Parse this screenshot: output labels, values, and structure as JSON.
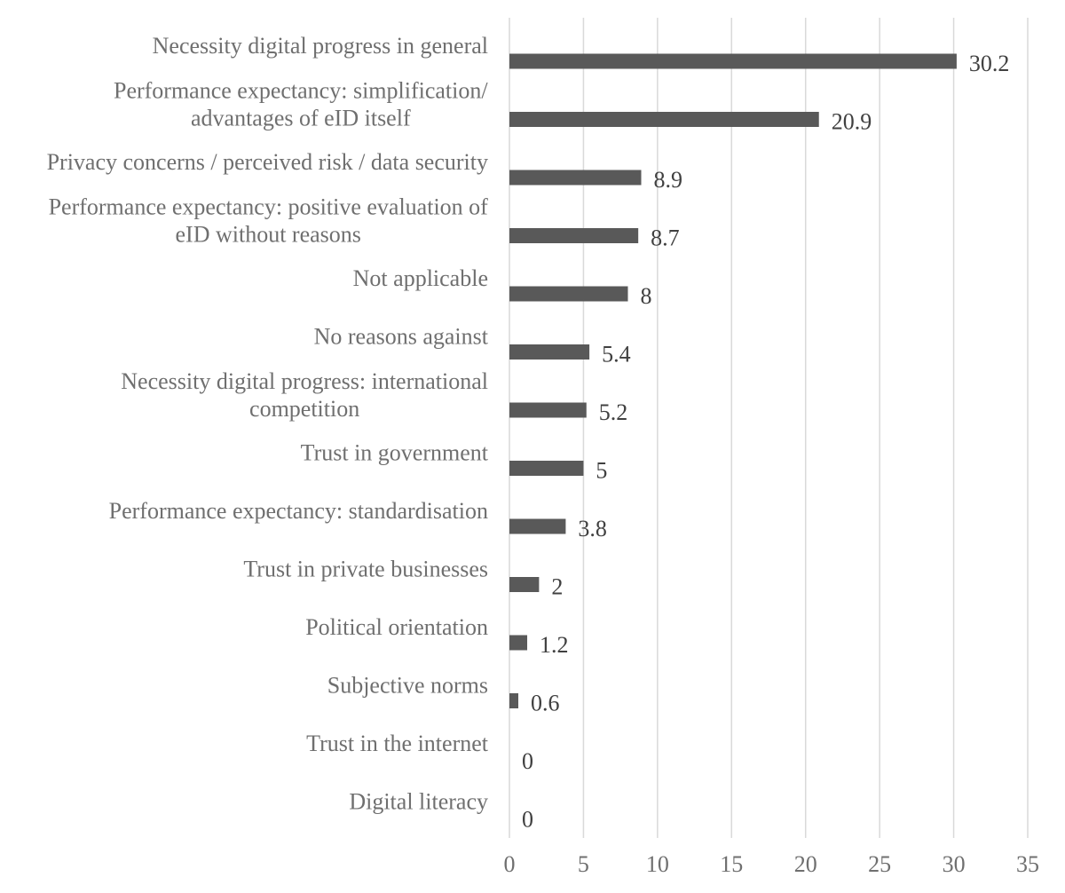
{
  "chart_data": {
    "type": "bar",
    "orientation": "horizontal",
    "title": "",
    "xlabel": "",
    "ylabel": "",
    "xlim": [
      0,
      35
    ],
    "x_ticks": [
      0,
      5,
      10,
      15,
      20,
      25,
      30,
      35
    ],
    "grid": true,
    "bar_color": "#595959",
    "categories": [
      [
        "Necessity digital progress in general"
      ],
      [
        "Performance expectancy: simplification/",
        "advantages of eID itself"
      ],
      [
        "Privacy concerns / perceived risk / data security"
      ],
      [
        "Performance expectancy: positive evaluation of",
        "eID without reasons"
      ],
      [
        "Not applicable"
      ],
      [
        "No reasons against"
      ],
      [
        "Necessity digital progress: international",
        "competition"
      ],
      [
        "Trust in government"
      ],
      [
        "Performance expectancy: standardisation"
      ],
      [
        "Trust in private businesses"
      ],
      [
        "Political orientation"
      ],
      [
        "Subjective norms"
      ],
      [
        "Trust in the internet"
      ],
      [
        "Digital literacy"
      ]
    ],
    "values": [
      30.2,
      20.9,
      8.9,
      8.7,
      8,
      5.4,
      5.2,
      5,
      3.8,
      2,
      1.2,
      0.6,
      0,
      0
    ],
    "value_labels": [
      "30.2",
      "20.9",
      "8.9",
      "8.7",
      "8",
      "5.4",
      "5.2",
      "5",
      "3.8",
      "2",
      "1.2",
      "0.6",
      "0",
      "0"
    ]
  }
}
